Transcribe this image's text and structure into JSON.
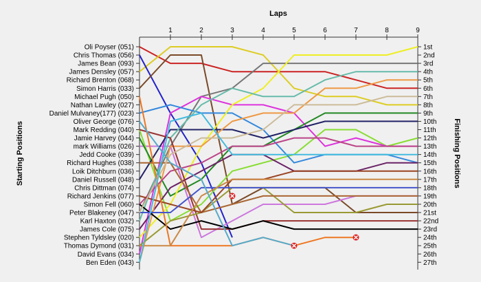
{
  "chart_data": {
    "type": "line",
    "subtype": "lap-position-chart",
    "title": "Laps",
    "ylabel_left": "Starting Positions",
    "ylabel_right": "Finishing Positions",
    "x_ticks": [
      1,
      2,
      3,
      4,
      5,
      6,
      7,
      8,
      9
    ],
    "ylim": [
      1,
      27
    ],
    "y_inverted": true,
    "grid": false,
    "background": "#f0f0f0",
    "start_labels": [
      "Oli Poyser (051)",
      "Chris Thomas (056)",
      "James Bean (093)",
      "James Densley (057)",
      "Richard Brenton (068)",
      "Simon Harris (033)",
      "Michael Pugh (050)",
      "Nathan Lawley (027)",
      "Daniel Mulvaney(177) (023)",
      "Oliver George (076)",
      "Mark Redding (040)",
      "Jamie Harvey (044)",
      "mark Williams (026)",
      "Jedd Cooke (039)",
      "Richard Hughes (038)",
      "Loik Ditchburn (036)",
      "Daniel Russell (048)",
      "Chris Dittman (074)",
      "Richard Jenkins (077)",
      "Simon Fell (060)",
      "Peter Blakeney (047)",
      "Karl Haxton (032)",
      "James Cole (075)",
      "Stephen Tyldsley (020)",
      "Thomas Dymond (031)",
      "David Evans (034)",
      "Ben Eden (043)"
    ],
    "finish_labels": [
      "1st",
      "2nd",
      "3rd",
      "4th",
      "5th",
      "6th",
      "7th",
      "8th",
      "9th",
      "10th",
      "11th",
      "12th",
      "13th",
      "14th",
      "15th",
      "16th",
      "17th",
      "18th",
      "19th",
      "20th",
      "21st",
      "22nd",
      "23rd",
      "24th",
      "25th",
      "26th",
      "27th"
    ],
    "series": [
      {
        "name": "Oli Poyser (051)",
        "color": "#cc2222",
        "positions": [
          1,
          3,
          3,
          4,
          4,
          4,
          4,
          5,
          6,
          6
        ]
      },
      {
        "name": "Chris Thomas (056)",
        "color": "#ddcc22",
        "positions": [
          4,
          1,
          1,
          1,
          2,
          6,
          7,
          7,
          8,
          8
        ]
      },
      {
        "name": "James Bean (093)",
        "color": "#2222cc",
        "positions": [
          2,
          9,
          15,
          24,
          null,
          null,
          null,
          null,
          null,
          null
        ]
      },
      {
        "name": "James Densley (057)",
        "color": "#7a4a28",
        "positions": [
          6,
          2,
          2,
          20,
          18,
          18,
          18,
          21,
          21,
          21
        ]
      },
      {
        "name": "Richard Brenton (068)",
        "color": "#cc77dd",
        "positions": [
          13,
          13,
          24,
          22,
          20,
          20,
          20,
          19,
          19,
          19
        ]
      },
      {
        "name": "Simon Harris (033)",
        "color": "#777777",
        "positions": [
          21,
          13,
          7,
          6,
          3,
          3,
          3,
          3,
          3,
          3
        ]
      },
      {
        "name": "Michael Pugh (050)",
        "color": "#88dd33",
        "positions": [
          11,
          22,
          20,
          16,
          15,
          14,
          11,
          11,
          13,
          12
        ]
      },
      {
        "name": "Nathan Lawley (027)",
        "color": "#dd33dd",
        "positions": [
          26,
          9,
          7,
          8,
          8,
          9,
          13,
          12,
          13,
          13
        ]
      },
      {
        "name": "Daniel Mulvaney(177) (023)",
        "color": "#3388dd",
        "positions": [
          9,
          8,
          9,
          9,
          11,
          15,
          14,
          14,
          14,
          15
        ]
      },
      {
        "name": "Oliver George (076)",
        "color": "#228822",
        "positions": [
          12,
          19,
          17,
          13,
          13,
          11,
          9,
          9,
          9,
          9
        ]
      },
      {
        "name": "Mark Redding (040)",
        "color": "#222266",
        "positions": [
          17,
          11,
          11,
          11,
          12,
          11,
          10,
          10,
          10,
          10
        ]
      },
      {
        "name": "Jamie Harvey (044)",
        "color": "#eeee22",
        "positions": [
          24,
          20,
          13,
          8,
          6,
          2,
          2,
          2,
          2,
          1
        ]
      },
      {
        "name": "mark Williams (026)",
        "color": "#6a2266",
        "positions": [
          23,
          18,
          16,
          14,
          14,
          16,
          16,
          16,
          15,
          15
        ]
      },
      {
        "name": "Jedd Cooke (039)",
        "color": "#ee9944",
        "positions": [
          27,
          13,
          13,
          10,
          9,
          9,
          6,
          6,
          5,
          5
        ]
      },
      {
        "name": "Richard Hughes (038)",
        "color": "#66bbaa",
        "positions": [
          22,
          12,
          8,
          6,
          7,
          7,
          5,
          4,
          4,
          4
        ]
      },
      {
        "name": "Loik Ditchburn (036)",
        "color": "#993333",
        "positions": [
          11,
          12,
          23,
          23,
          22,
          22,
          22,
          22,
          22,
          22
        ]
      },
      {
        "name": "Daniel Russell (048)",
        "color": "#bb4488",
        "positions": [
          20,
          16,
          15,
          13,
          13,
          12,
          12,
          13,
          13,
          13
        ]
      },
      {
        "name": "Chris Dittman (074)",
        "color": "#999933",
        "positions": [
          25,
          22,
          21,
          18,
          18,
          21,
          21,
          21,
          20,
          20
        ]
      },
      {
        "name": "Richard Jenkins (077)",
        "color": "#aa6633",
        "positions": [
          15,
          15,
          21,
          20,
          19,
          19,
          19,
          19,
          19,
          19
        ]
      },
      {
        "name": "Simon Fell (060)",
        "color": "#994422",
        "positions": [
          19,
          20,
          21,
          17,
          17,
          16,
          16,
          16,
          16,
          16
        ]
      },
      {
        "name": "Peter Blakeney (047)",
        "color": "#000000",
        "positions": [
          20,
          23,
          22,
          23,
          22,
          23,
          23,
          23,
          23,
          23
        ]
      },
      {
        "name": "Karl Haxton (032)",
        "color": "#ee7722",
        "positions": [
          7,
          25,
          25,
          25,
          24,
          25,
          24,
          24,
          null,
          null
        ]
      },
      {
        "name": "James Cole (075)",
        "color": "#4455cc",
        "positions": [
          21,
          21,
          18,
          18,
          18,
          18,
          18,
          18,
          18,
          18
        ]
      },
      {
        "name": "Stephen Tyldsley (020)",
        "color": "#ccbb99",
        "positions": [
          21,
          14,
          12,
          12,
          11,
          8,
          8,
          8,
          7,
          7
        ]
      },
      {
        "name": "Thomas Dymond (031)",
        "color": "#cc8844",
        "positions": [
          25,
          25,
          19,
          17,
          17,
          17,
          17,
          17,
          17,
          17
        ]
      },
      {
        "name": "David Evans (034)",
        "color": "#55aacc",
        "positions": [
          10,
          15,
          17,
          25,
          24,
          25,
          null,
          null,
          null,
          null
        ]
      },
      {
        "name": "Ben Eden (043)",
        "color": "#44bbdd",
        "positions": [
          27,
          10,
          9,
          14,
          14,
          14,
          14,
          14,
          14,
          14
        ]
      }
    ],
    "retirements": [
      {
        "lap": 3,
        "position": 19
      },
      {
        "lap": 5,
        "position": 25
      },
      {
        "lap": 7,
        "position": 24
      }
    ]
  }
}
